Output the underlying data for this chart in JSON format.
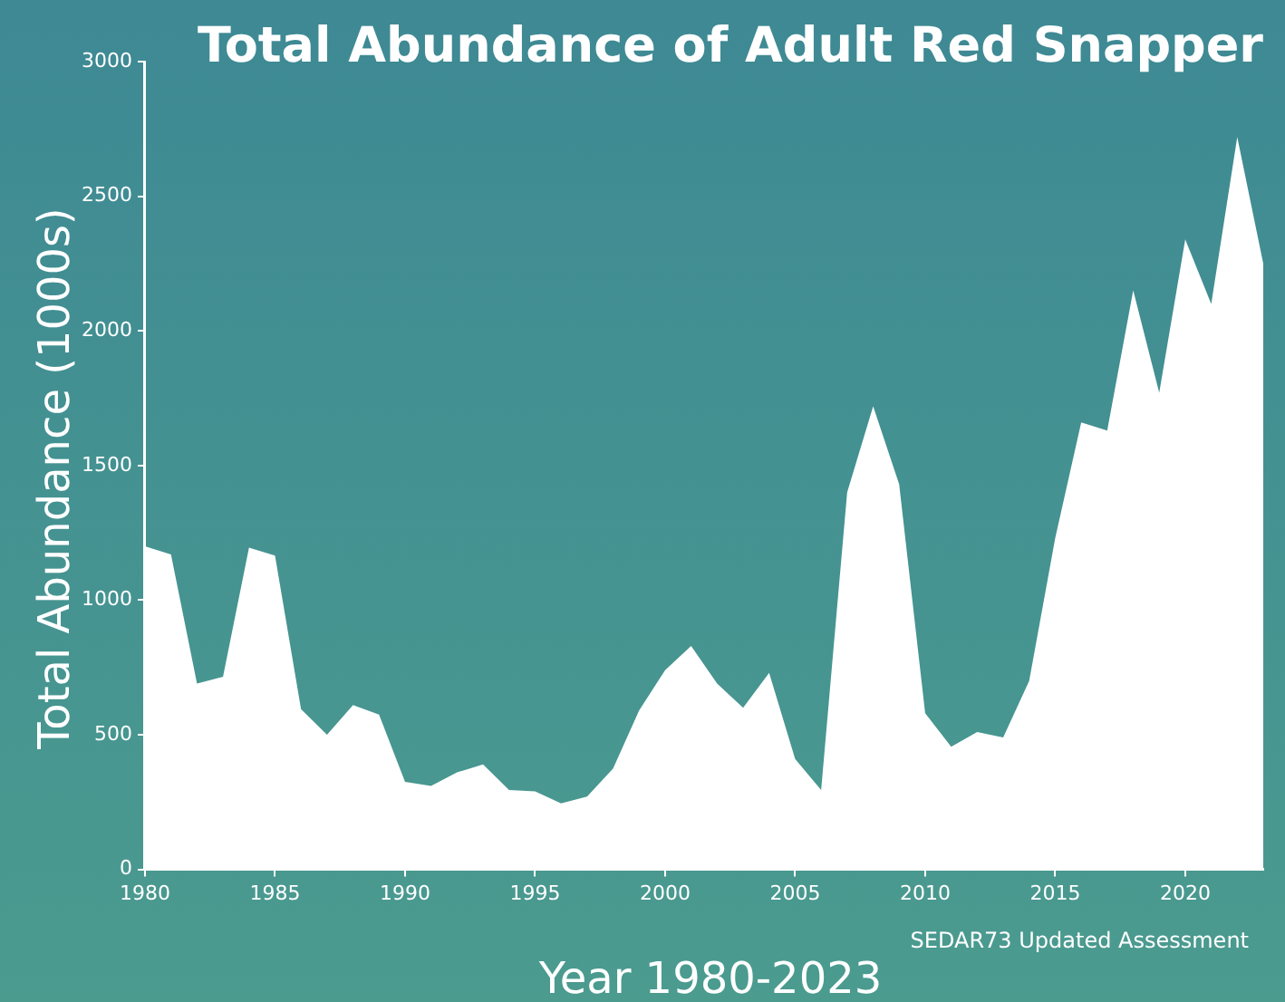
{
  "chart_data": {
    "type": "area",
    "title": "Total Abundance of Adult Red Snapper",
    "xlabel": "Year 1980-2023",
    "ylabel": "Total Abundance (1000s)",
    "annotations": [
      "SEDAR73 Updated Assessment"
    ],
    "x": [
      1980,
      1981,
      1982,
      1983,
      1984,
      1985,
      1986,
      1987,
      1988,
      1989,
      1990,
      1991,
      1992,
      1993,
      1994,
      1995,
      1996,
      1997,
      1998,
      1999,
      2000,
      2001,
      2002,
      2003,
      2004,
      2005,
      2006,
      2007,
      2008,
      2009,
      2010,
      2011,
      2012,
      2013,
      2014,
      2015,
      2016,
      2017,
      2018,
      2019,
      2020,
      2021,
      2022,
      2023
    ],
    "values": [
      1200,
      1170,
      690,
      715,
      1195,
      1165,
      595,
      500,
      610,
      575,
      325,
      310,
      360,
      390,
      295,
      290,
      245,
      270,
      375,
      590,
      740,
      830,
      690,
      600,
      730,
      410,
      295,
      1400,
      1720,
      1430,
      580,
      455,
      510,
      490,
      700,
      1230,
      1660,
      1630,
      2150,
      1770,
      2340,
      2100,
      2720,
      2250
    ],
    "color": "#ffffff",
    "xlim": [
      1980,
      2023
    ],
    "xticks": [
      1980,
      1985,
      1990,
      1995,
      2000,
      2005,
      2010,
      2015,
      2020
    ],
    "ylim": [
      0,
      3000
    ],
    "yticks": [
      0,
      500,
      1000,
      1500,
      2000,
      2500,
      3000
    ],
    "grid": false,
    "legend": false
  }
}
